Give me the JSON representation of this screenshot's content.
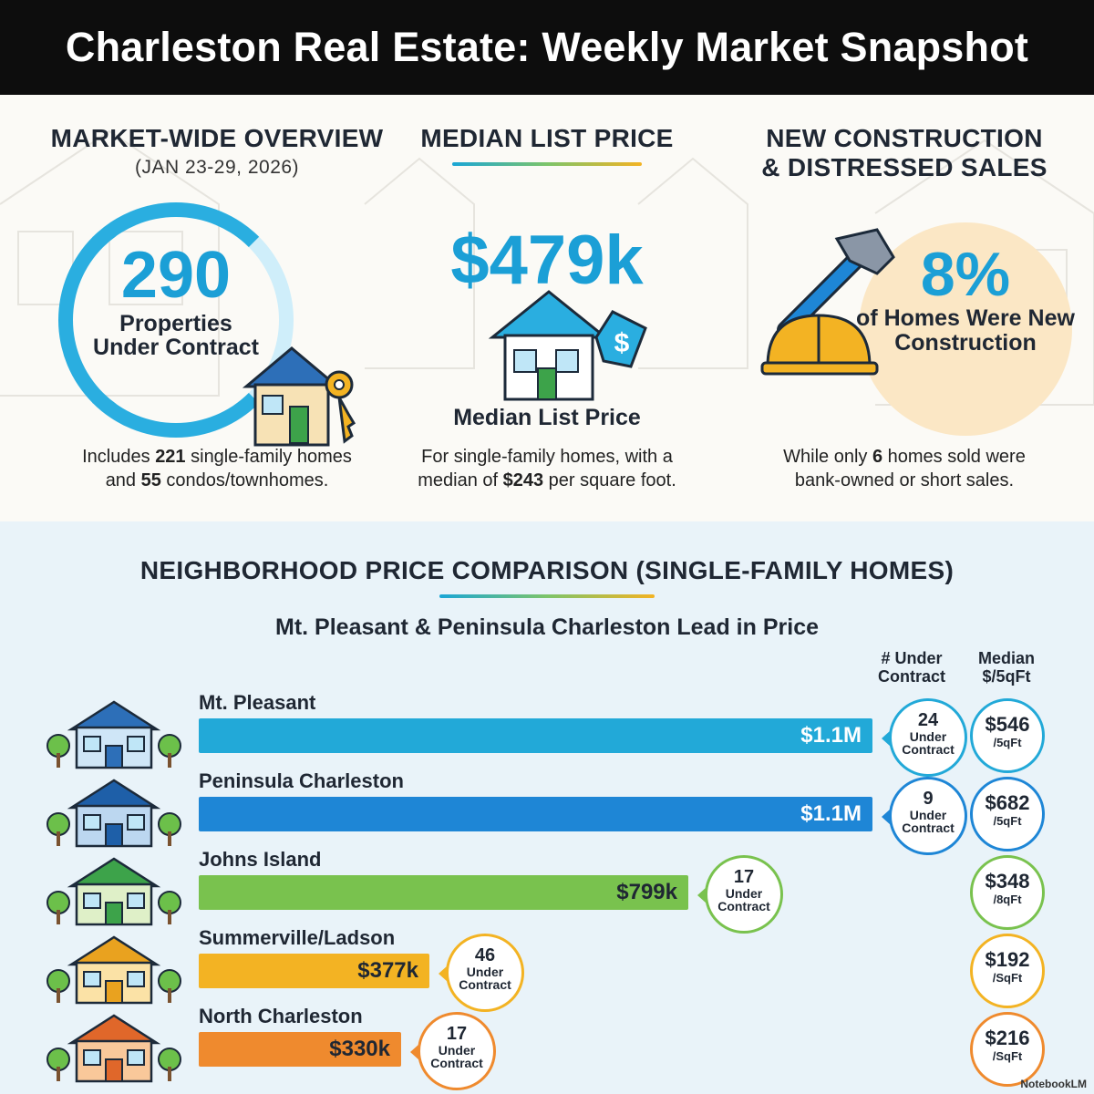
{
  "header": {
    "title": "Charleston Real Estate: Weekly Market Snapshot"
  },
  "overview": {
    "title": "MARKET-WIDE OVERVIEW",
    "dates": "(JAN 23-29, 2026)",
    "number": "290",
    "label": "Properties Under Contract",
    "foot": {
      "pre": "Includes ",
      "sf": "221",
      "mid": " single-family homes",
      "pre2": "and ",
      "condos": "55",
      "post": " condos/townhomes."
    }
  },
  "median": {
    "title": "MEDIAN LIST PRICE",
    "value": "$479k",
    "label": "Median List Price",
    "foot": {
      "pre": "For single-family homes, with a",
      "pre2": "median of ",
      "psf": "$243",
      "post": " per square foot."
    }
  },
  "construction": {
    "title_line1": "NEW CONSTRUCTION",
    "title_line2": "& DISTRESSED SALES",
    "pct": "8%",
    "label": "of Homes Were New Construction",
    "foot": {
      "pre": "While only ",
      "count": "6",
      "post": " homes sold were",
      "line2": "bank-owned or short sales."
    }
  },
  "comparison": {
    "title": "NEIGHBORHOOD PRICE COMPARISON (SINGLE-FAMILY HOMES)",
    "subtitle": "Mt. Pleasant & Peninsula Charleston Lead in Price",
    "col_under_contract": "# Under Contract",
    "col_median_sqft": "Median $/5qFt",
    "under_contract_label": "Under Contract"
  },
  "chart_data": {
    "type": "bar",
    "title": "NEIGHBORHOOD PRICE COMPARISON (SINGLE-FAMILY HOMES)",
    "subtitle": "Mt. Pleasant & Peninsula Charleston Lead in Price",
    "categories": [
      "Mt. Pleasant",
      "Peninsula Charleston",
      "Johns Island",
      "Summerville/Ladson",
      "North Charleston"
    ],
    "values": [
      1100000,
      1100000,
      799000,
      377000,
      330000
    ],
    "value_labels": [
      "$1.1M",
      "$1.1M",
      "$799k",
      "$377k",
      "$330k"
    ],
    "under_contract": [
      "24",
      "9",
      "17",
      "46",
      "17"
    ],
    "price_per_sqft": [
      "$546",
      "$682",
      "$348",
      "$192",
      "$216"
    ],
    "price_per_sqft_units": [
      "/5qFt",
      "/5qFt",
      "/8qFt",
      "/SqFt",
      "/SqFt"
    ],
    "colors": [
      "#22a9d8",
      "#1e86d6",
      "#79c24e",
      "#f3b323",
      "#ef8a2e"
    ],
    "xlim": [
      0,
      1500000
    ]
  },
  "brand": "NotebookLM"
}
